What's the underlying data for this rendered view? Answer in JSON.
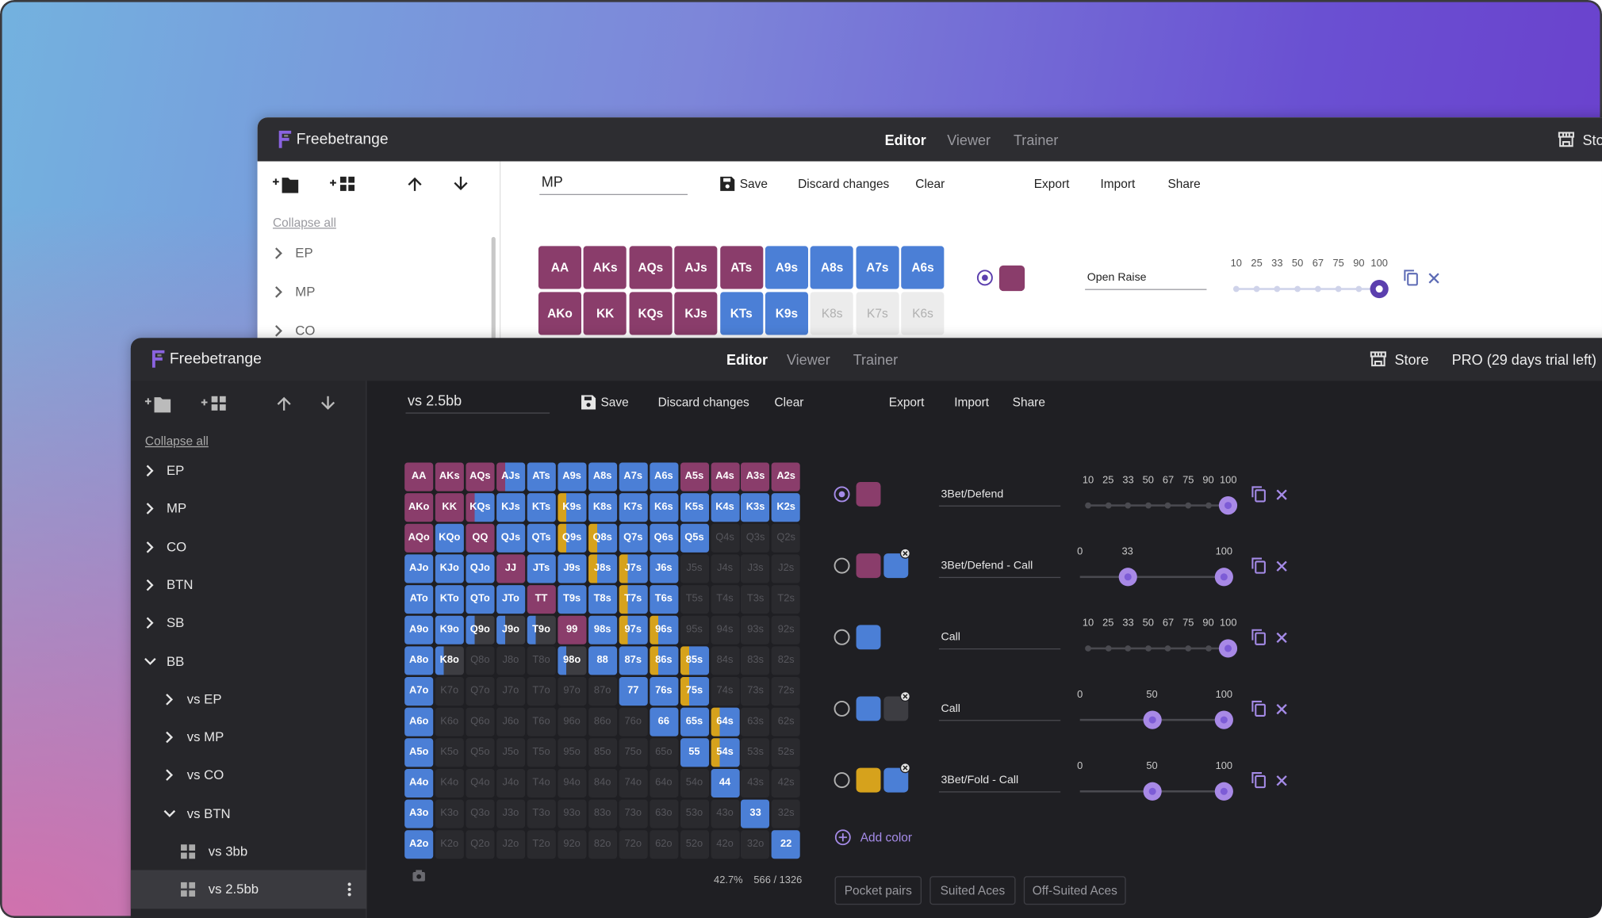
{
  "back_window": {
    "brand": "Freebetrange",
    "nav": [
      "Editor",
      "Viewer",
      "Trainer"
    ],
    "active_nav_index": 0,
    "store": "Store",
    "range_name": "MP",
    "actions": [
      "Save",
      "Discard changes",
      "Clear",
      "Export",
      "Import",
      "Share"
    ],
    "collapse_all": "Collapse all",
    "tree": [
      {
        "label": "EP",
        "depth": 0,
        "state": "collapsed"
      },
      {
        "label": "MP",
        "depth": 0,
        "state": "collapsed"
      },
      {
        "label": "CO",
        "depth": 0,
        "state": "collapsed"
      }
    ],
    "grid": [
      [
        {
          "hand": "AA",
          "fill": [
            "#8a3d6b"
          ]
        },
        {
          "hand": "AKs",
          "fill": [
            "#8a3d6b"
          ]
        },
        {
          "hand": "AQs",
          "fill": [
            "#8a3d6b"
          ]
        },
        {
          "hand": "AJs",
          "fill": [
            "#8a3d6b"
          ]
        },
        {
          "hand": "ATs",
          "fill": [
            "#8a3d6b"
          ]
        },
        {
          "hand": "A9s",
          "fill": [
            "#4b7fd6"
          ]
        },
        {
          "hand": "A8s",
          "fill": [
            "#4b7fd6"
          ]
        },
        {
          "hand": "A7s",
          "fill": [
            "#4b7fd6"
          ]
        },
        {
          "hand": "A6s",
          "fill": [
            "#4b7fd6"
          ]
        }
      ],
      [
        {
          "hand": "AKo",
          "fill": [
            "#8a3d6b"
          ]
        },
        {
          "hand": "KK",
          "fill": [
            "#8a3d6b"
          ]
        },
        {
          "hand": "KQs",
          "fill": [
            "#8a3d6b"
          ]
        },
        {
          "hand": "KJs",
          "fill": [
            "#8a3d6b"
          ]
        },
        {
          "hand": "KTs",
          "fill": [
            "#4b7fd6"
          ]
        },
        {
          "hand": "K9s",
          "fill": [
            "#4b7fd6"
          ]
        },
        {
          "hand": "K8s"
        },
        {
          "hand": "K7s"
        },
        {
          "hand": "K6s"
        }
      ]
    ],
    "actions_list": [
      {
        "selected": true,
        "swatches": [
          "#8a3d6b"
        ],
        "label": "Open Raise",
        "slider": {
          "mode": "preset",
          "ticks": [
            10,
            25,
            33,
            50,
            67,
            75,
            90,
            100
          ]
        }
      }
    ]
  },
  "front_window": {
    "brand": "Freebetrange",
    "nav": [
      "Editor",
      "Viewer",
      "Trainer"
    ],
    "active_nav_index": 0,
    "store": "Store",
    "plan": "PRO (29 days trial left)",
    "range_name": "vs 2.5bb",
    "actions": [
      "Save",
      "Discard changes",
      "Clear",
      "Export",
      "Import",
      "Share"
    ],
    "collapse_all": "Collapse all",
    "tree": [
      {
        "label": "EP",
        "depth": 0,
        "state": "collapsed"
      },
      {
        "label": "MP",
        "depth": 0,
        "state": "collapsed"
      },
      {
        "label": "CO",
        "depth": 0,
        "state": "collapsed"
      },
      {
        "label": "BTN",
        "depth": 0,
        "state": "collapsed"
      },
      {
        "label": "SB",
        "depth": 0,
        "state": "collapsed"
      },
      {
        "label": "BB",
        "depth": 0,
        "state": "expanded"
      },
      {
        "label": "vs EP",
        "depth": 1,
        "state": "collapsed"
      },
      {
        "label": "vs MP",
        "depth": 1,
        "state": "collapsed"
      },
      {
        "label": "vs CO",
        "depth": 1,
        "state": "collapsed"
      },
      {
        "label": "vs BTN",
        "depth": 1,
        "state": "expanded"
      },
      {
        "label": "vs 3bb",
        "depth": 2,
        "state": "leaf"
      },
      {
        "label": "vs 2.5bb",
        "depth": 2,
        "state": "leaf",
        "selected": true
      }
    ],
    "grid": [
      [
        {
          "hand": "AA",
          "fill": [
            "#8a3d6b"
          ]
        },
        {
          "hand": "AKs",
          "fill": [
            "#8a3d6b"
          ]
        },
        {
          "hand": "AQs",
          "fill": [
            "#8a3d6b"
          ]
        },
        {
          "hand": "AJs",
          "fill": [
            "#8a3d6b",
            "#4b7fd6"
          ]
        },
        {
          "hand": "ATs",
          "fill": [
            "#4b7fd6"
          ]
        },
        {
          "hand": "A9s",
          "fill": [
            "#4b7fd6"
          ]
        },
        {
          "hand": "A8s",
          "fill": [
            "#4b7fd6"
          ]
        },
        {
          "hand": "A7s",
          "fill": [
            "#4b7fd6"
          ]
        },
        {
          "hand": "A6s",
          "fill": [
            "#4b7fd6"
          ]
        },
        {
          "hand": "A5s",
          "fill": [
            "#8a3d6b"
          ]
        },
        {
          "hand": "A4s",
          "fill": [
            "#8a3d6b"
          ]
        },
        {
          "hand": "A3s",
          "fill": [
            "#8a3d6b"
          ]
        },
        {
          "hand": "A2s",
          "fill": [
            "#8a3d6b"
          ]
        }
      ],
      [
        {
          "hand": "AKo",
          "fill": [
            "#8a3d6b"
          ]
        },
        {
          "hand": "KK",
          "fill": [
            "#8a3d6b"
          ]
        },
        {
          "hand": "KQs",
          "fill": [
            "#8a3d6b",
            "#4b7fd6"
          ]
        },
        {
          "hand": "KJs",
          "fill": [
            "#4b7fd6"
          ]
        },
        {
          "hand": "KTs",
          "fill": [
            "#4b7fd6"
          ]
        },
        {
          "hand": "K9s",
          "fill": [
            "#d6a21c",
            "#4b7fd6"
          ]
        },
        {
          "hand": "K8s",
          "fill": [
            "#4b7fd6"
          ]
        },
        {
          "hand": "K7s",
          "fill": [
            "#4b7fd6"
          ]
        },
        {
          "hand": "K6s",
          "fill": [
            "#4b7fd6"
          ]
        },
        {
          "hand": "K5s",
          "fill": [
            "#4b7fd6"
          ]
        },
        {
          "hand": "K4s",
          "fill": [
            "#4b7fd6"
          ]
        },
        {
          "hand": "K3s",
          "fill": [
            "#4b7fd6"
          ]
        },
        {
          "hand": "K2s",
          "fill": [
            "#4b7fd6"
          ]
        }
      ],
      [
        {
          "hand": "AQo",
          "fill": [
            "#8a3d6b"
          ]
        },
        {
          "hand": "KQo",
          "fill": [
            "#4b7fd6"
          ]
        },
        {
          "hand": "QQ",
          "fill": [
            "#8a3d6b"
          ]
        },
        {
          "hand": "QJs",
          "fill": [
            "#4b7fd6"
          ]
        },
        {
          "hand": "QTs",
          "fill": [
            "#4b7fd6"
          ]
        },
        {
          "hand": "Q9s",
          "fill": [
            "#d6a21c",
            "#4b7fd6"
          ]
        },
        {
          "hand": "Q8s",
          "fill": [
            "#d6a21c",
            "#4b7fd6"
          ]
        },
        {
          "hand": "Q7s",
          "fill": [
            "#4b7fd6"
          ]
        },
        {
          "hand": "Q6s",
          "fill": [
            "#4b7fd6"
          ]
        },
        {
          "hand": "Q5s",
          "fill": [
            "#4b7fd6"
          ]
        },
        {
          "hand": "Q4s"
        },
        {
          "hand": "Q3s"
        },
        {
          "hand": "Q2s"
        }
      ],
      [
        {
          "hand": "AJo",
          "fill": [
            "#4b7fd6"
          ]
        },
        {
          "hand": "KJo",
          "fill": [
            "#4b7fd6"
          ]
        },
        {
          "hand": "QJo",
          "fill": [
            "#4b7fd6"
          ]
        },
        {
          "hand": "JJ",
          "fill": [
            "#8a3d6b"
          ]
        },
        {
          "hand": "JTs",
          "fill": [
            "#4b7fd6"
          ]
        },
        {
          "hand": "J9s",
          "fill": [
            "#4b7fd6"
          ]
        },
        {
          "hand": "J8s",
          "fill": [
            "#d6a21c",
            "#4b7fd6"
          ]
        },
        {
          "hand": "J7s",
          "fill": [
            "#d6a21c",
            "#4b7fd6"
          ]
        },
        {
          "hand": "J6s",
          "fill": [
            "#4b7fd6"
          ]
        },
        {
          "hand": "J5s"
        },
        {
          "hand": "J4s"
        },
        {
          "hand": "J3s"
        },
        {
          "hand": "J2s"
        }
      ],
      [
        {
          "hand": "ATo",
          "fill": [
            "#4b7fd6"
          ]
        },
        {
          "hand": "KTo",
          "fill": [
            "#4b7fd6"
          ]
        },
        {
          "hand": "QTo",
          "fill": [
            "#4b7fd6"
          ]
        },
        {
          "hand": "JTo",
          "fill": [
            "#4b7fd6"
          ]
        },
        {
          "hand": "TT",
          "fill": [
            "#8a3d6b"
          ]
        },
        {
          "hand": "T9s",
          "fill": [
            "#4b7fd6"
          ]
        },
        {
          "hand": "T8s",
          "fill": [
            "#4b7fd6"
          ]
        },
        {
          "hand": "T7s",
          "fill": [
            "#d6a21c",
            "#4b7fd6"
          ]
        },
        {
          "hand": "T6s",
          "fill": [
            "#4b7fd6"
          ]
        },
        {
          "hand": "T5s"
        },
        {
          "hand": "T4s"
        },
        {
          "hand": "T3s"
        },
        {
          "hand": "T2s"
        }
      ],
      [
        {
          "hand": "A9o",
          "fill": [
            "#4b7fd6"
          ]
        },
        {
          "hand": "K9o",
          "fill": [
            "#4b7fd6"
          ]
        },
        {
          "hand": "Q9o",
          "fill": [
            "#4b7fd6",
            "#3d3d42"
          ]
        },
        {
          "hand": "J9o",
          "fill": [
            "#4b7fd6",
            "#3d3d42"
          ]
        },
        {
          "hand": "T9o",
          "fill": [
            "#4b7fd6",
            "#3d3d42"
          ]
        },
        {
          "hand": "99",
          "fill": [
            "#8a3d6b"
          ]
        },
        {
          "hand": "98s",
          "fill": [
            "#4b7fd6"
          ]
        },
        {
          "hand": "97s",
          "fill": [
            "#d6a21c",
            "#4b7fd6"
          ]
        },
        {
          "hand": "96s",
          "fill": [
            "#d6a21c",
            "#4b7fd6"
          ]
        },
        {
          "hand": "95s"
        },
        {
          "hand": "94s"
        },
        {
          "hand": "93s"
        },
        {
          "hand": "92s"
        }
      ],
      [
        {
          "hand": "A8o",
          "fill": [
            "#4b7fd6"
          ]
        },
        {
          "hand": "K8o",
          "fill": [
            "#4b7fd6",
            "#3d3d42"
          ]
        },
        {
          "hand": "Q8o"
        },
        {
          "hand": "J8o"
        },
        {
          "hand": "T8o"
        },
        {
          "hand": "98o",
          "fill": [
            "#4b7fd6",
            "#3d3d42"
          ]
        },
        {
          "hand": "88",
          "fill": [
            "#4b7fd6"
          ]
        },
        {
          "hand": "87s",
          "fill": [
            "#4b7fd6"
          ]
        },
        {
          "hand": "86s",
          "fill": [
            "#d6a21c",
            "#4b7fd6"
          ]
        },
        {
          "hand": "85s",
          "fill": [
            "#d6a21c",
            "#4b7fd6"
          ]
        },
        {
          "hand": "84s"
        },
        {
          "hand": "83s"
        },
        {
          "hand": "82s"
        }
      ],
      [
        {
          "hand": "A7o",
          "fill": [
            "#4b7fd6"
          ]
        },
        {
          "hand": "K7o"
        },
        {
          "hand": "Q7o"
        },
        {
          "hand": "J7o"
        },
        {
          "hand": "T7o"
        },
        {
          "hand": "97o"
        },
        {
          "hand": "87o"
        },
        {
          "hand": "77",
          "fill": [
            "#4b7fd6"
          ]
        },
        {
          "hand": "76s",
          "fill": [
            "#4b7fd6"
          ]
        },
        {
          "hand": "75s",
          "fill": [
            "#d6a21c",
            "#4b7fd6"
          ]
        },
        {
          "hand": "74s"
        },
        {
          "hand": "73s"
        },
        {
          "hand": "72s"
        }
      ],
      [
        {
          "hand": "A6o",
          "fill": [
            "#4b7fd6"
          ]
        },
        {
          "hand": "K6o"
        },
        {
          "hand": "Q6o"
        },
        {
          "hand": "J6o"
        },
        {
          "hand": "T6o"
        },
        {
          "hand": "96o"
        },
        {
          "hand": "86o"
        },
        {
          "hand": "76o"
        },
        {
          "hand": "66",
          "fill": [
            "#4b7fd6"
          ]
        },
        {
          "hand": "65s",
          "fill": [
            "#4b7fd6"
          ]
        },
        {
          "hand": "64s",
          "fill": [
            "#d6a21c",
            "#4b7fd6"
          ]
        },
        {
          "hand": "63s"
        },
        {
          "hand": "62s"
        }
      ],
      [
        {
          "hand": "A5o",
          "fill": [
            "#4b7fd6"
          ]
        },
        {
          "hand": "K5o"
        },
        {
          "hand": "Q5o"
        },
        {
          "hand": "J5o"
        },
        {
          "hand": "T5o"
        },
        {
          "hand": "95o"
        },
        {
          "hand": "85o"
        },
        {
          "hand": "75o"
        },
        {
          "hand": "65o"
        },
        {
          "hand": "55",
          "fill": [
            "#4b7fd6"
          ]
        },
        {
          "hand": "54s",
          "fill": [
            "#d6a21c",
            "#4b7fd6"
          ]
        },
        {
          "hand": "53s"
        },
        {
          "hand": "52s"
        }
      ],
      [
        {
          "hand": "A4o",
          "fill": [
            "#4b7fd6"
          ]
        },
        {
          "hand": "K4o"
        },
        {
          "hand": "Q4o"
        },
        {
          "hand": "J4o"
        },
        {
          "hand": "T4o"
        },
        {
          "hand": "94o"
        },
        {
          "hand": "84o"
        },
        {
          "hand": "74o"
        },
        {
          "hand": "64o"
        },
        {
          "hand": "54o"
        },
        {
          "hand": "44",
          "fill": [
            "#4b7fd6"
          ]
        },
        {
          "hand": "43s"
        },
        {
          "hand": "42s"
        }
      ],
      [
        {
          "hand": "A3o",
          "fill": [
            "#4b7fd6"
          ]
        },
        {
          "hand": "K3o"
        },
        {
          "hand": "Q3o"
        },
        {
          "hand": "J3o"
        },
        {
          "hand": "T3o"
        },
        {
          "hand": "93o"
        },
        {
          "hand": "83o"
        },
        {
          "hand": "73o"
        },
        {
          "hand": "63o"
        },
        {
          "hand": "53o"
        },
        {
          "hand": "43o"
        },
        {
          "hand": "33",
          "fill": [
            "#4b7fd6"
          ]
        },
        {
          "hand": "32s"
        }
      ],
      [
        {
          "hand": "A2o",
          "fill": [
            "#4b7fd6"
          ]
        },
        {
          "hand": "K2o"
        },
        {
          "hand": "Q2o"
        },
        {
          "hand": "J2o"
        },
        {
          "hand": "T2o"
        },
        {
          "hand": "92o"
        },
        {
          "hand": "82o"
        },
        {
          "hand": "72o"
        },
        {
          "hand": "62o"
        },
        {
          "hand": "52o"
        },
        {
          "hand": "42o"
        },
        {
          "hand": "32o"
        },
        {
          "hand": "22",
          "fill": [
            "#4b7fd6"
          ]
        }
      ]
    ],
    "stats": {
      "percent": "42.7%",
      "combos": "566 / 1326"
    },
    "actions_list": [
      {
        "selected": true,
        "swatches": [
          "#8a3d6b"
        ],
        "label": "3Bet/Defend",
        "slider": {
          "mode": "preset",
          "ticks": [
            10,
            25,
            33,
            50,
            67,
            75,
            90,
            100
          ]
        }
      },
      {
        "swatches": [
          "#8a3d6b",
          "#4b7fd6"
        ],
        "label": "3Bet/Defend - Call",
        "slider": {
          "mode": "range",
          "ticks": [
            0,
            33,
            100
          ]
        }
      },
      {
        "swatches": [
          "#4b7fd6"
        ],
        "label": "Call",
        "slider": {
          "mode": "preset",
          "ticks": [
            10,
            25,
            33,
            50,
            67,
            75,
            90,
            100
          ]
        }
      },
      {
        "swatches": [
          "#4b7fd6",
          "#3d3d42"
        ],
        "label": "Call",
        "slider": {
          "mode": "range",
          "ticks": [
            0,
            50,
            100
          ]
        }
      },
      {
        "swatches": [
          "#d6a21c",
          "#4b7fd6"
        ],
        "label": "3Bet/Fold - Call",
        "slider": {
          "mode": "range",
          "ticks": [
            0,
            50,
            100
          ]
        }
      }
    ],
    "add_color": "Add color",
    "filters": [
      "Pocket pairs",
      "Suited Aces",
      "Off-Suited Aces"
    ]
  }
}
